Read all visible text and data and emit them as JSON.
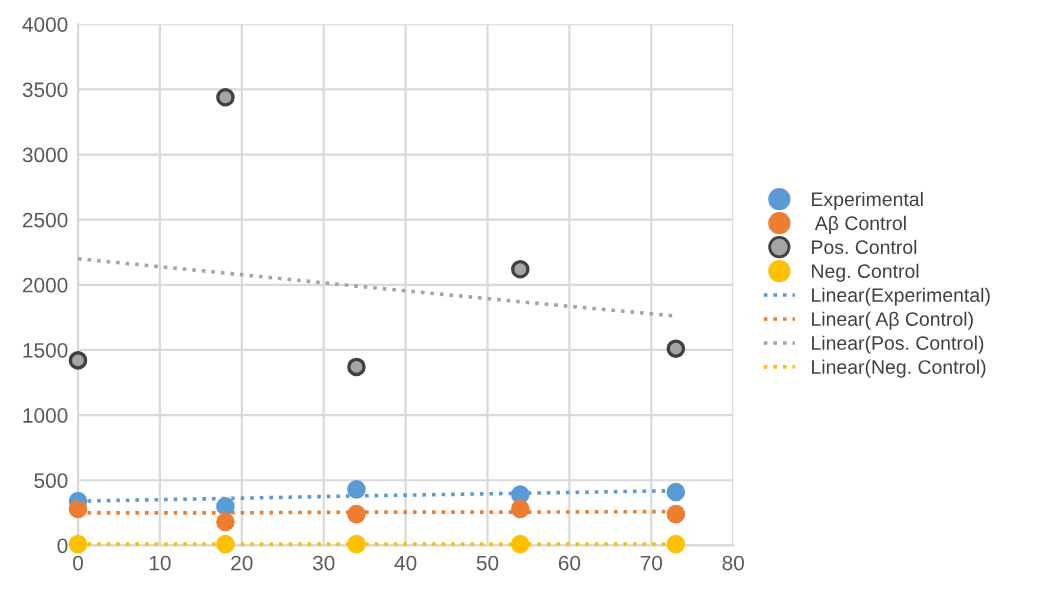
{
  "chart_data": {
    "type": "scatter",
    "x": [
      0,
      18,
      34,
      54,
      73
    ],
    "series": [
      {
        "name": "Experimental",
        "color": "#5b9bd5",
        "values": [
          340,
          300,
          430,
          390,
          410
        ],
        "marker": "circle"
      },
      {
        "name": " Aβ Control",
        "color": "#ed7d31",
        "values": [
          280,
          180,
          240,
          280,
          240
        ],
        "marker": "circle"
      },
      {
        "name": "Pos. Control",
        "color": "#a5a5a5",
        "values": [
          1420,
          3440,
          1370,
          2120,
          1510
        ],
        "marker": "circle"
      },
      {
        "name": "Neg. Control",
        "color": "#ffc000",
        "values": [
          10,
          10,
          10,
          10,
          10
        ],
        "marker": "circle"
      },
      {
        "name": "Linear(Experimental)",
        "type": "line",
        "color": "#5b9bd5",
        "values": [
          340,
          360,
          380,
          400,
          420
        ],
        "line_style": "dotted",
        "marker": "none"
      },
      {
        "name": "Linear( Aβ Control)",
        "type": "line",
        "color": "#ed7d31",
        "values": [
          250,
          250,
          255,
          255,
          260
        ],
        "line_style": "dotted",
        "marker": "none"
      },
      {
        "name": "Linear(Pos. Control)",
        "type": "line",
        "color": "#a5a5a5",
        "values": [
          2200,
          2090,
          1990,
          1870,
          1760
        ],
        "line_style": "dotted",
        "marker": "none"
      },
      {
        "name": "Linear(Neg. Control)",
        "type": "line",
        "color": "#ffc000",
        "values": [
          10,
          10,
          10,
          10,
          10
        ],
        "line_style": "dotted",
        "marker": "none"
      }
    ],
    "xlim": [
      0,
      80
    ],
    "xticks": [
      0,
      10,
      20,
      30,
      40,
      50,
      60,
      70,
      80
    ],
    "ylim": [
      0,
      4000
    ],
    "yticks": [
      0,
      500,
      1000,
      1500,
      2000,
      2500,
      3000,
      3500,
      4000
    ],
    "grid": true,
    "legend": "right"
  }
}
